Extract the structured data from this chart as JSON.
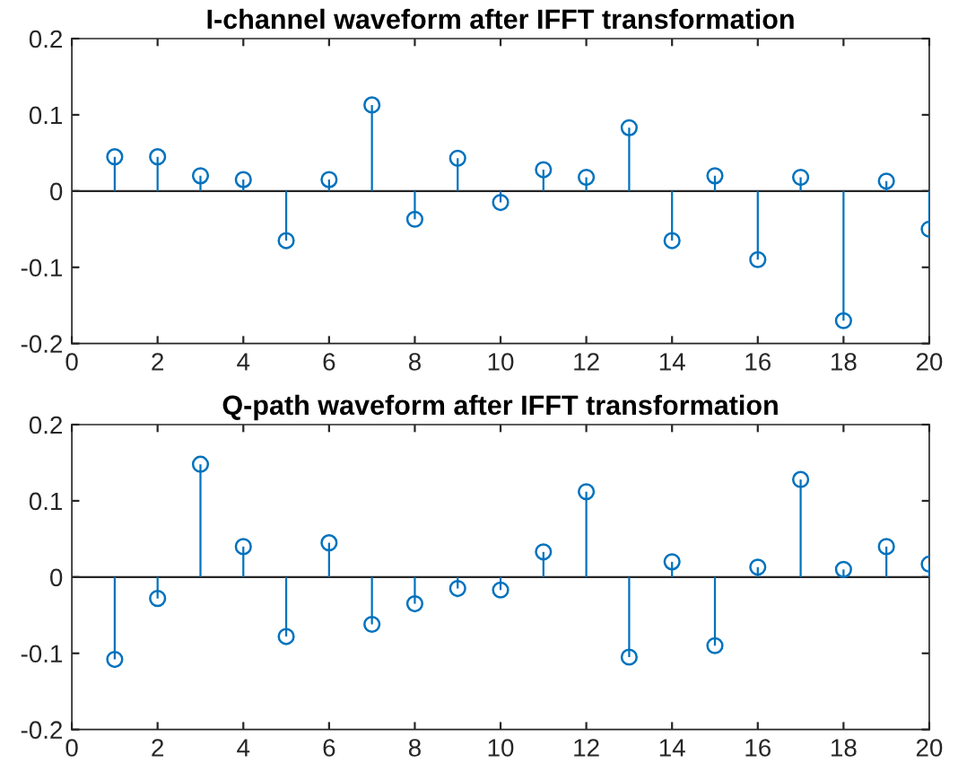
{
  "chart_data": [
    {
      "type": "lollipop",
      "title": "I-channel waveform after IFFT transformation",
      "x": [
        1,
        2,
        3,
        4,
        5,
        6,
        7,
        8,
        9,
        10,
        11,
        12,
        13,
        14,
        15,
        16,
        17,
        18,
        19,
        20
      ],
      "series": [
        {
          "color": "#0072bd",
          "values": [
            0.045,
            0.045,
            0.02,
            0.015,
            -0.065,
            0.015,
            0.113,
            -0.037,
            0.043,
            -0.015,
            0.028,
            0.018,
            0.083,
            -0.065,
            0.02,
            -0.09,
            0.018,
            -0.17,
            0.013,
            -0.05
          ]
        }
      ],
      "xlim": [
        0,
        20
      ],
      "xticks": [
        0,
        2,
        4,
        6,
        8,
        10,
        12,
        14,
        16,
        18,
        20
      ],
      "ylim": [
        -0.2,
        0.2
      ],
      "yticks": [
        -0.2,
        -0.1,
        0,
        0.1,
        0.2
      ],
      "marker": "circle",
      "ref_lines": [
        {
          "axis": "y",
          "value": 0,
          "color": "#262626"
        }
      ]
    },
    {
      "type": "lollipop",
      "title": "Q-path waveform after IFFT transformation",
      "x": [
        1,
        2,
        3,
        4,
        5,
        6,
        7,
        8,
        9,
        10,
        11,
        12,
        13,
        14,
        15,
        16,
        17,
        18,
        19,
        20
      ],
      "series": [
        {
          "color": "#0072bd",
          "values": [
            -0.108,
            -0.028,
            0.148,
            0.04,
            -0.078,
            0.045,
            -0.062,
            -0.035,
            -0.015,
            -0.017,
            0.033,
            0.112,
            -0.105,
            0.02,
            -0.09,
            0.013,
            0.128,
            0.01,
            0.04,
            0.017
          ]
        }
      ],
      "xlim": [
        0,
        20
      ],
      "xticks": [
        0,
        2,
        4,
        6,
        8,
        10,
        12,
        14,
        16,
        18,
        20
      ],
      "ylim": [
        -0.2,
        0.2
      ],
      "yticks": [
        -0.2,
        -0.1,
        0,
        0.1,
        0.2
      ],
      "marker": "circle",
      "ref_lines": [
        {
          "axis": "y",
          "value": 0,
          "color": "#262626"
        }
      ]
    }
  ]
}
